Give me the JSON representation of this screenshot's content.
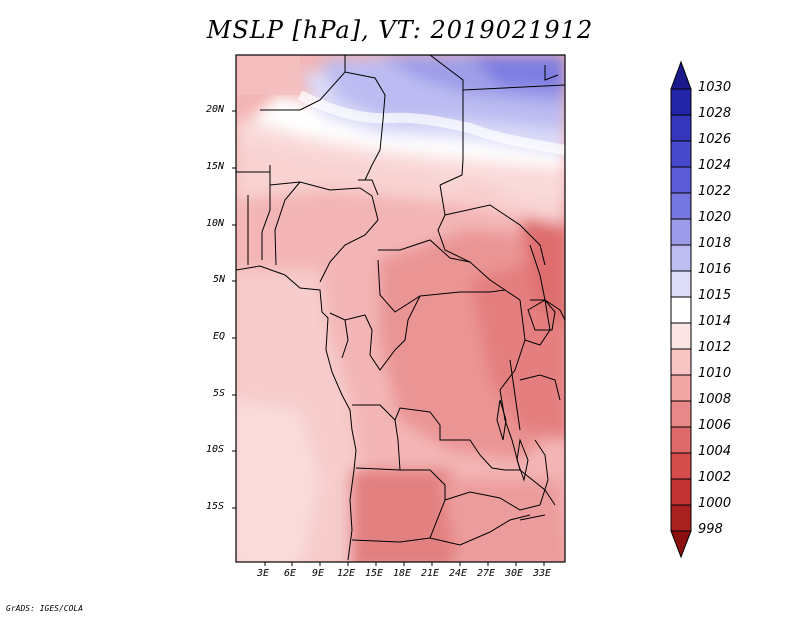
{
  "title": "MSLP [hPa], VT: 2019021912",
  "credit": "GrADS: IGES/COLA",
  "lat_labels": [
    "20N",
    "15N",
    "10N",
    "5N",
    "EQ",
    "5S",
    "10S",
    "15S"
  ],
  "lon_labels": [
    "3E",
    "6E",
    "9E",
    "12E",
    "15E",
    "18E",
    "21E",
    "24E",
    "27E",
    "30E",
    "33E"
  ],
  "colorbar": {
    "levels": [
      "1030",
      "1028",
      "1026",
      "1024",
      "1022",
      "1020",
      "1018",
      "1016",
      "1015",
      "1014",
      "1012",
      "1010",
      "1008",
      "1006",
      "1004",
      "1002",
      "1000",
      "998"
    ],
    "colors": [
      "#1a1a8c",
      "#2424a8",
      "#3535bd",
      "#4848cc",
      "#5c5cd8",
      "#7676e0",
      "#9b9be9",
      "#bdbdf2",
      "#dcdcf9",
      "#ffffff",
      "#fde4e4",
      "#f8c4c4",
      "#f2a5a5",
      "#e88888",
      "#de6a6a",
      "#d44c4c",
      "#c43434",
      "#a82020",
      "#8c1010"
    ]
  }
}
